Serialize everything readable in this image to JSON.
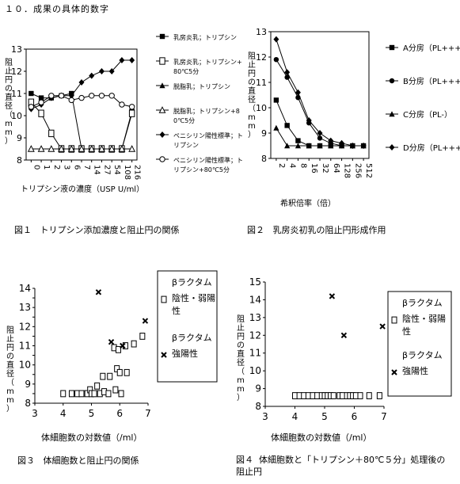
{
  "heading": "１０．成果の具体的数字",
  "figures": [
    {
      "caption_num": "図１",
      "caption_text": "トリプシン添加濃度と阻止円の関係"
    },
    {
      "caption_num": "図２",
      "caption_text": "乳房炎初乳の阻止円形成作用"
    },
    {
      "caption_num": "図３",
      "caption_text": "体細胞数と阻止円の関係"
    },
    {
      "caption_num": "図４",
      "caption_text": "体細胞数と「トリプシン＋80℃５分」処理後の阻止円"
    }
  ],
  "chart_data": [
    {
      "type": "line",
      "title": "",
      "xlabel": "トリプシン液の濃度（USP U/ml）",
      "ylabel": "阻止円の直径（mm）",
      "categories": [
        "0",
        "1",
        "2",
        "3",
        "6",
        "7",
        "14",
        "27",
        "54",
        "108",
        "216"
      ],
      "ylim": [
        8,
        13
      ],
      "yticks": [
        8,
        9,
        10,
        11,
        12,
        13
      ],
      "series": [
        {
          "name": "乳房炎乳；トリプシン",
          "marker": "square-filled",
          "values": [
            11,
            10.8,
            10.8,
            10.9,
            11,
            8.5,
            8.5,
            8.5,
            8.5,
            8.5,
            10.2
          ]
        },
        {
          "name": "乳房炎乳；トリプシン+80℃5分",
          "marker": "square-open",
          "values": [
            10.6,
            10.1,
            9.2,
            8.5,
            8.5,
            8.5,
            8.5,
            8.5,
            8.5,
            8.5,
            10.1
          ]
        },
        {
          "name": "脱脂乳；トリプシン",
          "marker": "triangle-filled",
          "values": [
            8.5,
            8.5,
            8.5,
            8.5,
            8.5,
            8.5,
            8.5,
            8.5,
            8.5,
            8.5,
            8.5
          ]
        },
        {
          "name": "脱脂乳；トリプシン+80℃5分",
          "marker": "triangle-open",
          "values": [
            8.5,
            8.5,
            8.5,
            8.5,
            8.5,
            8.5,
            8.5,
            8.5,
            8.5,
            8.5,
            8.5
          ]
        },
        {
          "name": "ペニシリン陽性標準；トリプシン",
          "marker": "diamond-filled",
          "values": [
            10.3,
            10.5,
            10.8,
            10.9,
            10.9,
            11.5,
            11.8,
            12,
            12,
            12.5,
            12.5
          ]
        },
        {
          "name": "ペニシリン陽性標準；トリプシン+80℃5分",
          "marker": "circle-open",
          "values": [
            10.4,
            10.6,
            10.9,
            10.9,
            10.7,
            10.8,
            10.9,
            10.9,
            10.9,
            10.5,
            10.4
          ]
        }
      ]
    },
    {
      "type": "line",
      "title": "",
      "xlabel": "希釈倍率（倍）",
      "ylabel": "阻止円の直径（mm）",
      "categories": [
        "2",
        "4",
        "8",
        "16",
        "32",
        "64",
        "128",
        "256",
        "512"
      ],
      "ylim": [
        8,
        13
      ],
      "yticks": [
        8,
        9,
        10,
        11,
        12,
        13
      ],
      "series": [
        {
          "name": "A分房（PL+++）",
          "marker": "square-filled",
          "values": [
            10.3,
            9.3,
            8.7,
            8.5,
            8.5,
            8.5,
            8.5,
            8.5,
            8.5
          ]
        },
        {
          "name": "B分房（PL+++）",
          "marker": "circle-filled",
          "values": [
            11.9,
            11.2,
            10.4,
            9.4,
            8.8,
            8.6,
            8.5,
            8.5,
            8.5
          ]
        },
        {
          "name": "C分房（PL-）",
          "marker": "triangle-filled",
          "values": [
            9.2,
            8.5,
            8.5,
            8.5,
            8.5,
            8.5,
            8.5,
            8.5,
            8.5
          ]
        },
        {
          "name": "D分房（PL+++）",
          "marker": "diamond-filled",
          "values": [
            12.7,
            11.4,
            10.6,
            9.5,
            9.0,
            8.7,
            8.6,
            8.5,
            8.5
          ]
        }
      ]
    },
    {
      "type": "scatter",
      "title": "",
      "xlabel": "体細胞数の対数値（/ml）",
      "ylabel": "阻止円の直径（mm）",
      "xlim": [
        3,
        7
      ],
      "ylim": [
        8,
        14
      ],
      "xticks": [
        3,
        4,
        5,
        6,
        7
      ],
      "yticks": [
        8,
        8.5,
        9,
        9.5,
        10,
        10.5,
        11,
        11.5,
        12,
        12.5,
        13,
        13.5,
        14
      ],
      "legend_title": "βラクタム",
      "series": [
        {
          "name": "陰性・弱陽性",
          "marker": "square-open",
          "points": [
            [
              4.0,
              8.5
            ],
            [
              4.3,
              8.5
            ],
            [
              4.5,
              8.5
            ],
            [
              4.65,
              8.5
            ],
            [
              4.85,
              8.5
            ],
            [
              4.95,
              8.7
            ],
            [
              5.0,
              8.5
            ],
            [
              5.1,
              8.5
            ],
            [
              5.2,
              8.9
            ],
            [
              5.3,
              8.5
            ],
            [
              5.4,
              9.4
            ],
            [
              5.45,
              8.6
            ],
            [
              5.6,
              8.5
            ],
            [
              5.65,
              9.4
            ],
            [
              5.8,
              10.9
            ],
            [
              5.85,
              8.7
            ],
            [
              5.9,
              9.8
            ],
            [
              5.95,
              10.8
            ],
            [
              6.0,
              9.6
            ],
            [
              6.05,
              8.5
            ],
            [
              6.2,
              11.0
            ],
            [
              6.25,
              9.6
            ],
            [
              6.5,
              11.1
            ],
            [
              6.8,
              11.5
            ]
          ]
        },
        {
          "name": "強陽性",
          "marker": "x",
          "points": [
            [
              5.25,
              13.8
            ],
            [
              5.7,
              11.2
            ],
            [
              6.1,
              11.0
            ],
            [
              6.9,
              12.3
            ]
          ]
        }
      ]
    },
    {
      "type": "scatter",
      "title": "",
      "xlabel": "体細胞数の対数値（/ml）",
      "ylabel": "阻止円の直径（mm）",
      "xlim": [
        3,
        7
      ],
      "ylim": [
        8,
        15
      ],
      "xticks": [
        3,
        4,
        5,
        6,
        7
      ],
      "yticks": [
        8,
        9,
        10,
        11,
        12,
        13,
        14,
        15
      ],
      "legend_title": "βラクタム",
      "series": [
        {
          "name": "陰性・弱陽性",
          "marker": "square-open",
          "points": [
            [
              4.0,
              8.6
            ],
            [
              4.15,
              8.6
            ],
            [
              4.3,
              8.6
            ],
            [
              4.45,
              8.6
            ],
            [
              4.6,
              8.6
            ],
            [
              4.75,
              8.6
            ],
            [
              4.9,
              8.6
            ],
            [
              5.0,
              8.6
            ],
            [
              5.1,
              8.6
            ],
            [
              5.2,
              8.6
            ],
            [
              5.3,
              8.6
            ],
            [
              5.5,
              8.6
            ],
            [
              5.6,
              8.6
            ],
            [
              5.75,
              8.6
            ],
            [
              5.85,
              8.6
            ],
            [
              5.95,
              8.6
            ],
            [
              6.05,
              8.6
            ],
            [
              6.2,
              8.6
            ],
            [
              6.5,
              8.6
            ],
            [
              6.85,
              8.6
            ]
          ]
        },
        {
          "name": "強陽性",
          "marker": "x",
          "points": [
            [
              5.25,
              14.2
            ],
            [
              5.65,
              12.0
            ],
            [
              6.95,
              12.5
            ]
          ]
        }
      ]
    }
  ]
}
